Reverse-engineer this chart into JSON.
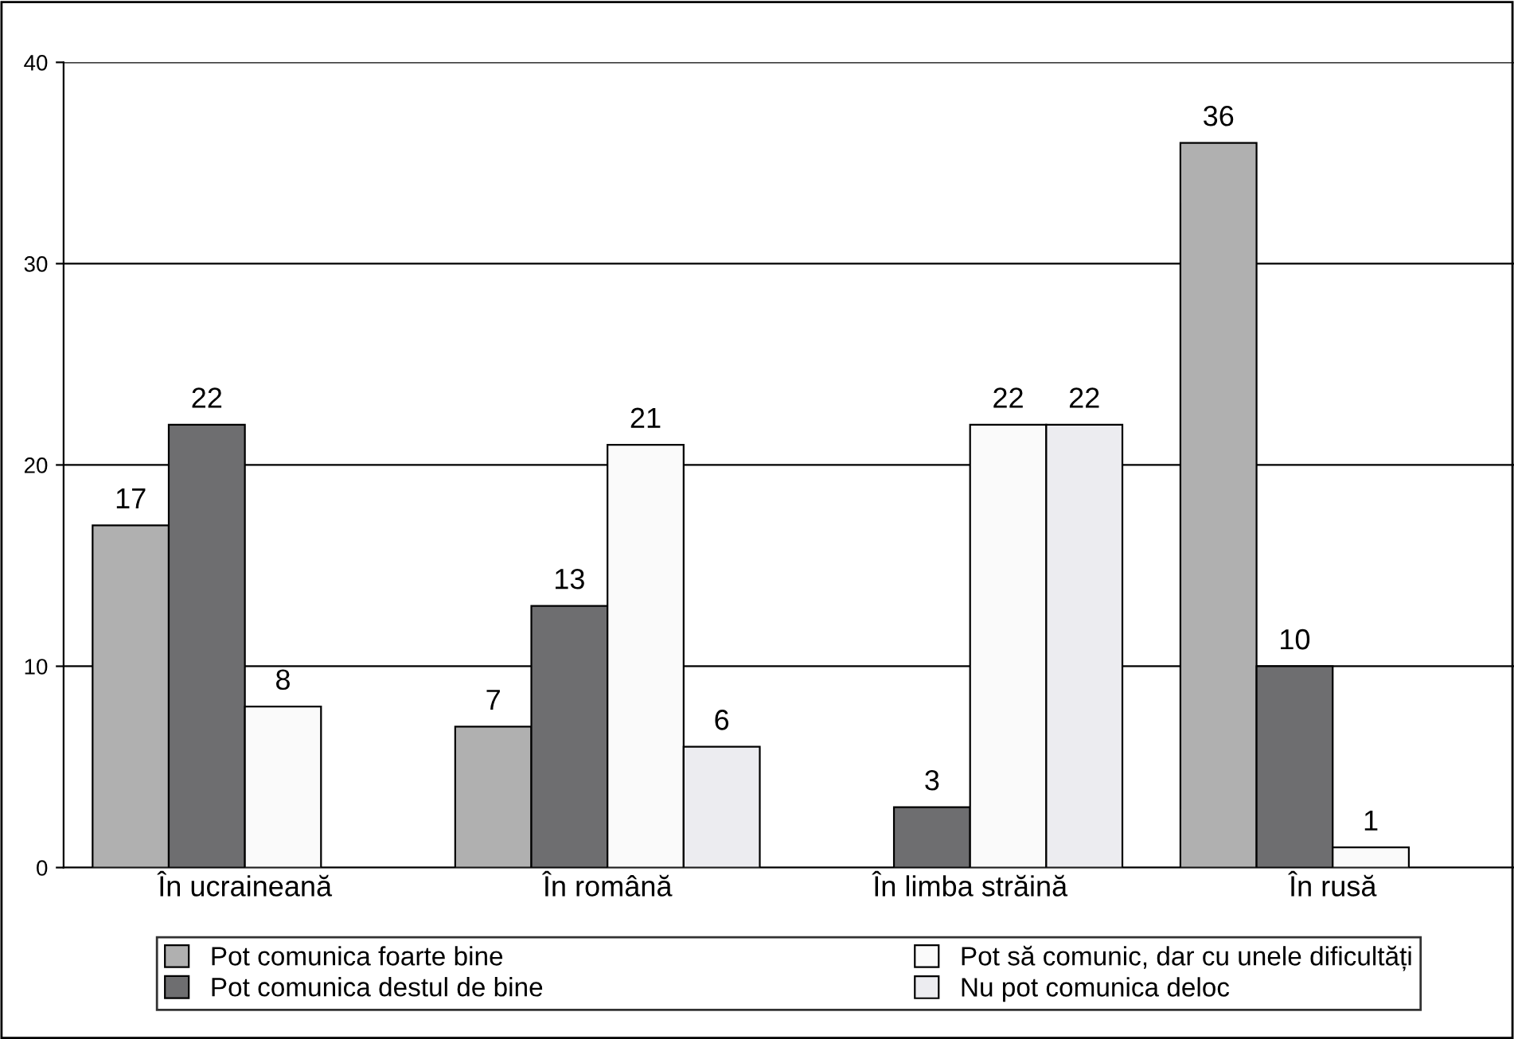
{
  "chart_data": {
    "type": "bar",
    "categories": [
      "În ucraineană",
      "În română",
      "În limba străină",
      "În rusă"
    ],
    "series": [
      {
        "name": "Pot comunica foarte bine",
        "color": "#b0b0b0",
        "values": [
          17,
          7,
          null,
          36
        ]
      },
      {
        "name": "Pot comunica destul de bine",
        "color": "#6e6e70",
        "values": [
          22,
          13,
          3,
          10
        ]
      },
      {
        "name": "Pot să comunic, dar cu unele dificultăți",
        "color": "#fafafa",
        "values": [
          8,
          21,
          22,
          1
        ]
      },
      {
        "name": "Nu pot comunica deloc",
        "color": "#ececf0",
        "values": [
          null,
          6,
          22,
          null
        ]
      }
    ],
    "ylim": [
      0,
      40
    ],
    "yticks": [
      0,
      10,
      20,
      30,
      40
    ],
    "grid": "y",
    "legend": "bottom",
    "data_labels": true
  }
}
